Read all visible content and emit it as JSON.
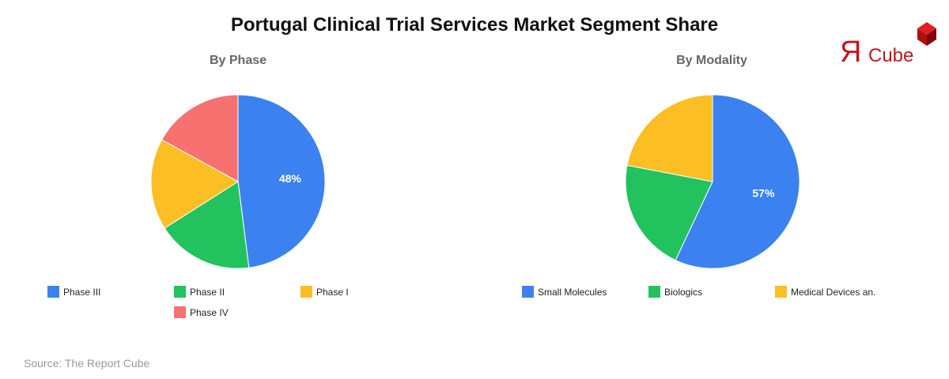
{
  "header": {
    "title": "Portugal Clinical Trial Services Market Segment Share"
  },
  "logo": {
    "text_r": "Я",
    "text_cube": "Cube",
    "color": "#c0171c"
  },
  "source": "Source: The Report Cube",
  "chart_data": [
    {
      "type": "pie",
      "title": "By Phase",
      "categories": [
        "Phase III",
        "Phase II",
        "Phase I",
        "Phase IV"
      ],
      "values": [
        48,
        18,
        17,
        17
      ],
      "colors": [
        "#3b82f0",
        "#22c35e",
        "#fbbf24",
        "#f87171"
      ],
      "labels_shown": [
        "48%",
        "",
        "",
        ""
      ],
      "legend_position": "bottom"
    },
    {
      "type": "pie",
      "title": "By Modality",
      "categories": [
        "Small Molecules",
        "Biologics",
        "Medical Devices an."
      ],
      "values": [
        57,
        21,
        22
      ],
      "colors": [
        "#3b82f0",
        "#22c35e",
        "#fbbf24"
      ],
      "labels_shown": [
        "57%",
        "",
        ""
      ],
      "legend_position": "bottom"
    }
  ]
}
